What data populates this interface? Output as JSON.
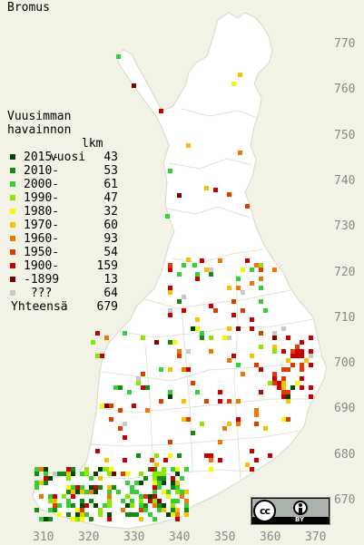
{
  "title": "Bromus",
  "legend": {
    "header": [
      "Vuusimman",
      "havainnon",
      "vuosi"
    ],
    "count_header": "lkm",
    "rows": [
      {
        "label": "2015-",
        "count": "43",
        "color": "#004800"
      },
      {
        "label": "2010-",
        "count": "53",
        "color": "#148c14"
      },
      {
        "label": "2000-",
        "count": "61",
        "color": "#34d034"
      },
      {
        "label": "1990-",
        "count": "47",
        "color": "#8ce800"
      },
      {
        "label": "1980-",
        "count": "32",
        "color": "#f8f800"
      },
      {
        "label": "1970-",
        "count": "60",
        "color": "#f8c000"
      },
      {
        "label": "1960-",
        "count": "93",
        "color": "#f07800"
      },
      {
        "label": "1950-",
        "count": "54",
        "color": "#e03c00"
      },
      {
        "label": "1900-",
        "count": "159",
        "color": "#c80000"
      },
      {
        "label": "-1899",
        "count": "13",
        "color": "#800000"
      },
      {
        "label": " ???",
        "count": "64",
        "color": "#c8c8c8"
      }
    ],
    "total_label": "Yhteensä",
    "total_count": "679"
  },
  "y_ticks": [
    "770",
    "760",
    "750",
    "740",
    "730",
    "720",
    "710",
    "700",
    "690",
    "680",
    "670"
  ],
  "x_ticks": [
    "310",
    "320",
    "330",
    "340",
    "350",
    "360",
    "370"
  ],
  "license": {
    "cc": "cc",
    "by": "BY"
  }
}
